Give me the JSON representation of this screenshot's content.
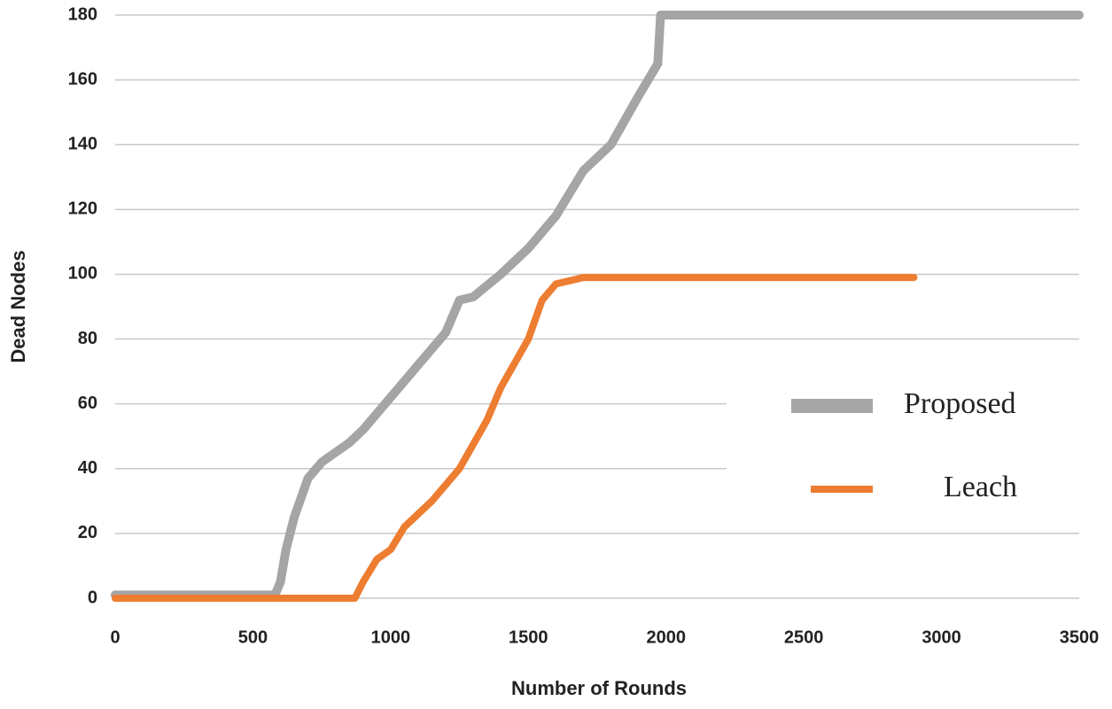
{
  "chart_data": {
    "type": "line",
    "x_label": "Number of Rounds",
    "y_label": "Dead Nodes",
    "xlim": [
      0,
      3500
    ],
    "xticks": [
      0,
      500,
      1000,
      1500,
      2000,
      2500,
      3000,
      3500
    ],
    "ylim": [
      0,
      180
    ],
    "yticks": [
      0,
      20,
      40,
      60,
      80,
      100,
      120,
      140,
      160,
      180
    ],
    "grid": true,
    "legend": "right",
    "series": [
      {
        "name": "Proposed",
        "color": "#a5a5a5",
        "x": [
          0,
          580,
          600,
          620,
          650,
          700,
          750,
          850,
          900,
          1000,
          1100,
          1200,
          1250,
          1300,
          1400,
          1500,
          1600,
          1700,
          1800,
          1900,
          1970,
          1980,
          3500
        ],
        "values": [
          1,
          1,
          5,
          15,
          25,
          37,
          42,
          48,
          52,
          62,
          72,
          82,
          92,
          93,
          100,
          108,
          118,
          132,
          140,
          155,
          165,
          180,
          180
        ]
      },
      {
        "name": "Leach",
        "color": "#ed7d31",
        "x": [
          0,
          870,
          900,
          950,
          1000,
          1050,
          1150,
          1250,
          1350,
          1400,
          1500,
          1550,
          1600,
          1700,
          2900
        ],
        "values": [
          0,
          0,
          5,
          12,
          15,
          22,
          30,
          40,
          55,
          65,
          80,
          92,
          97,
          99,
          99
        ]
      }
    ]
  }
}
